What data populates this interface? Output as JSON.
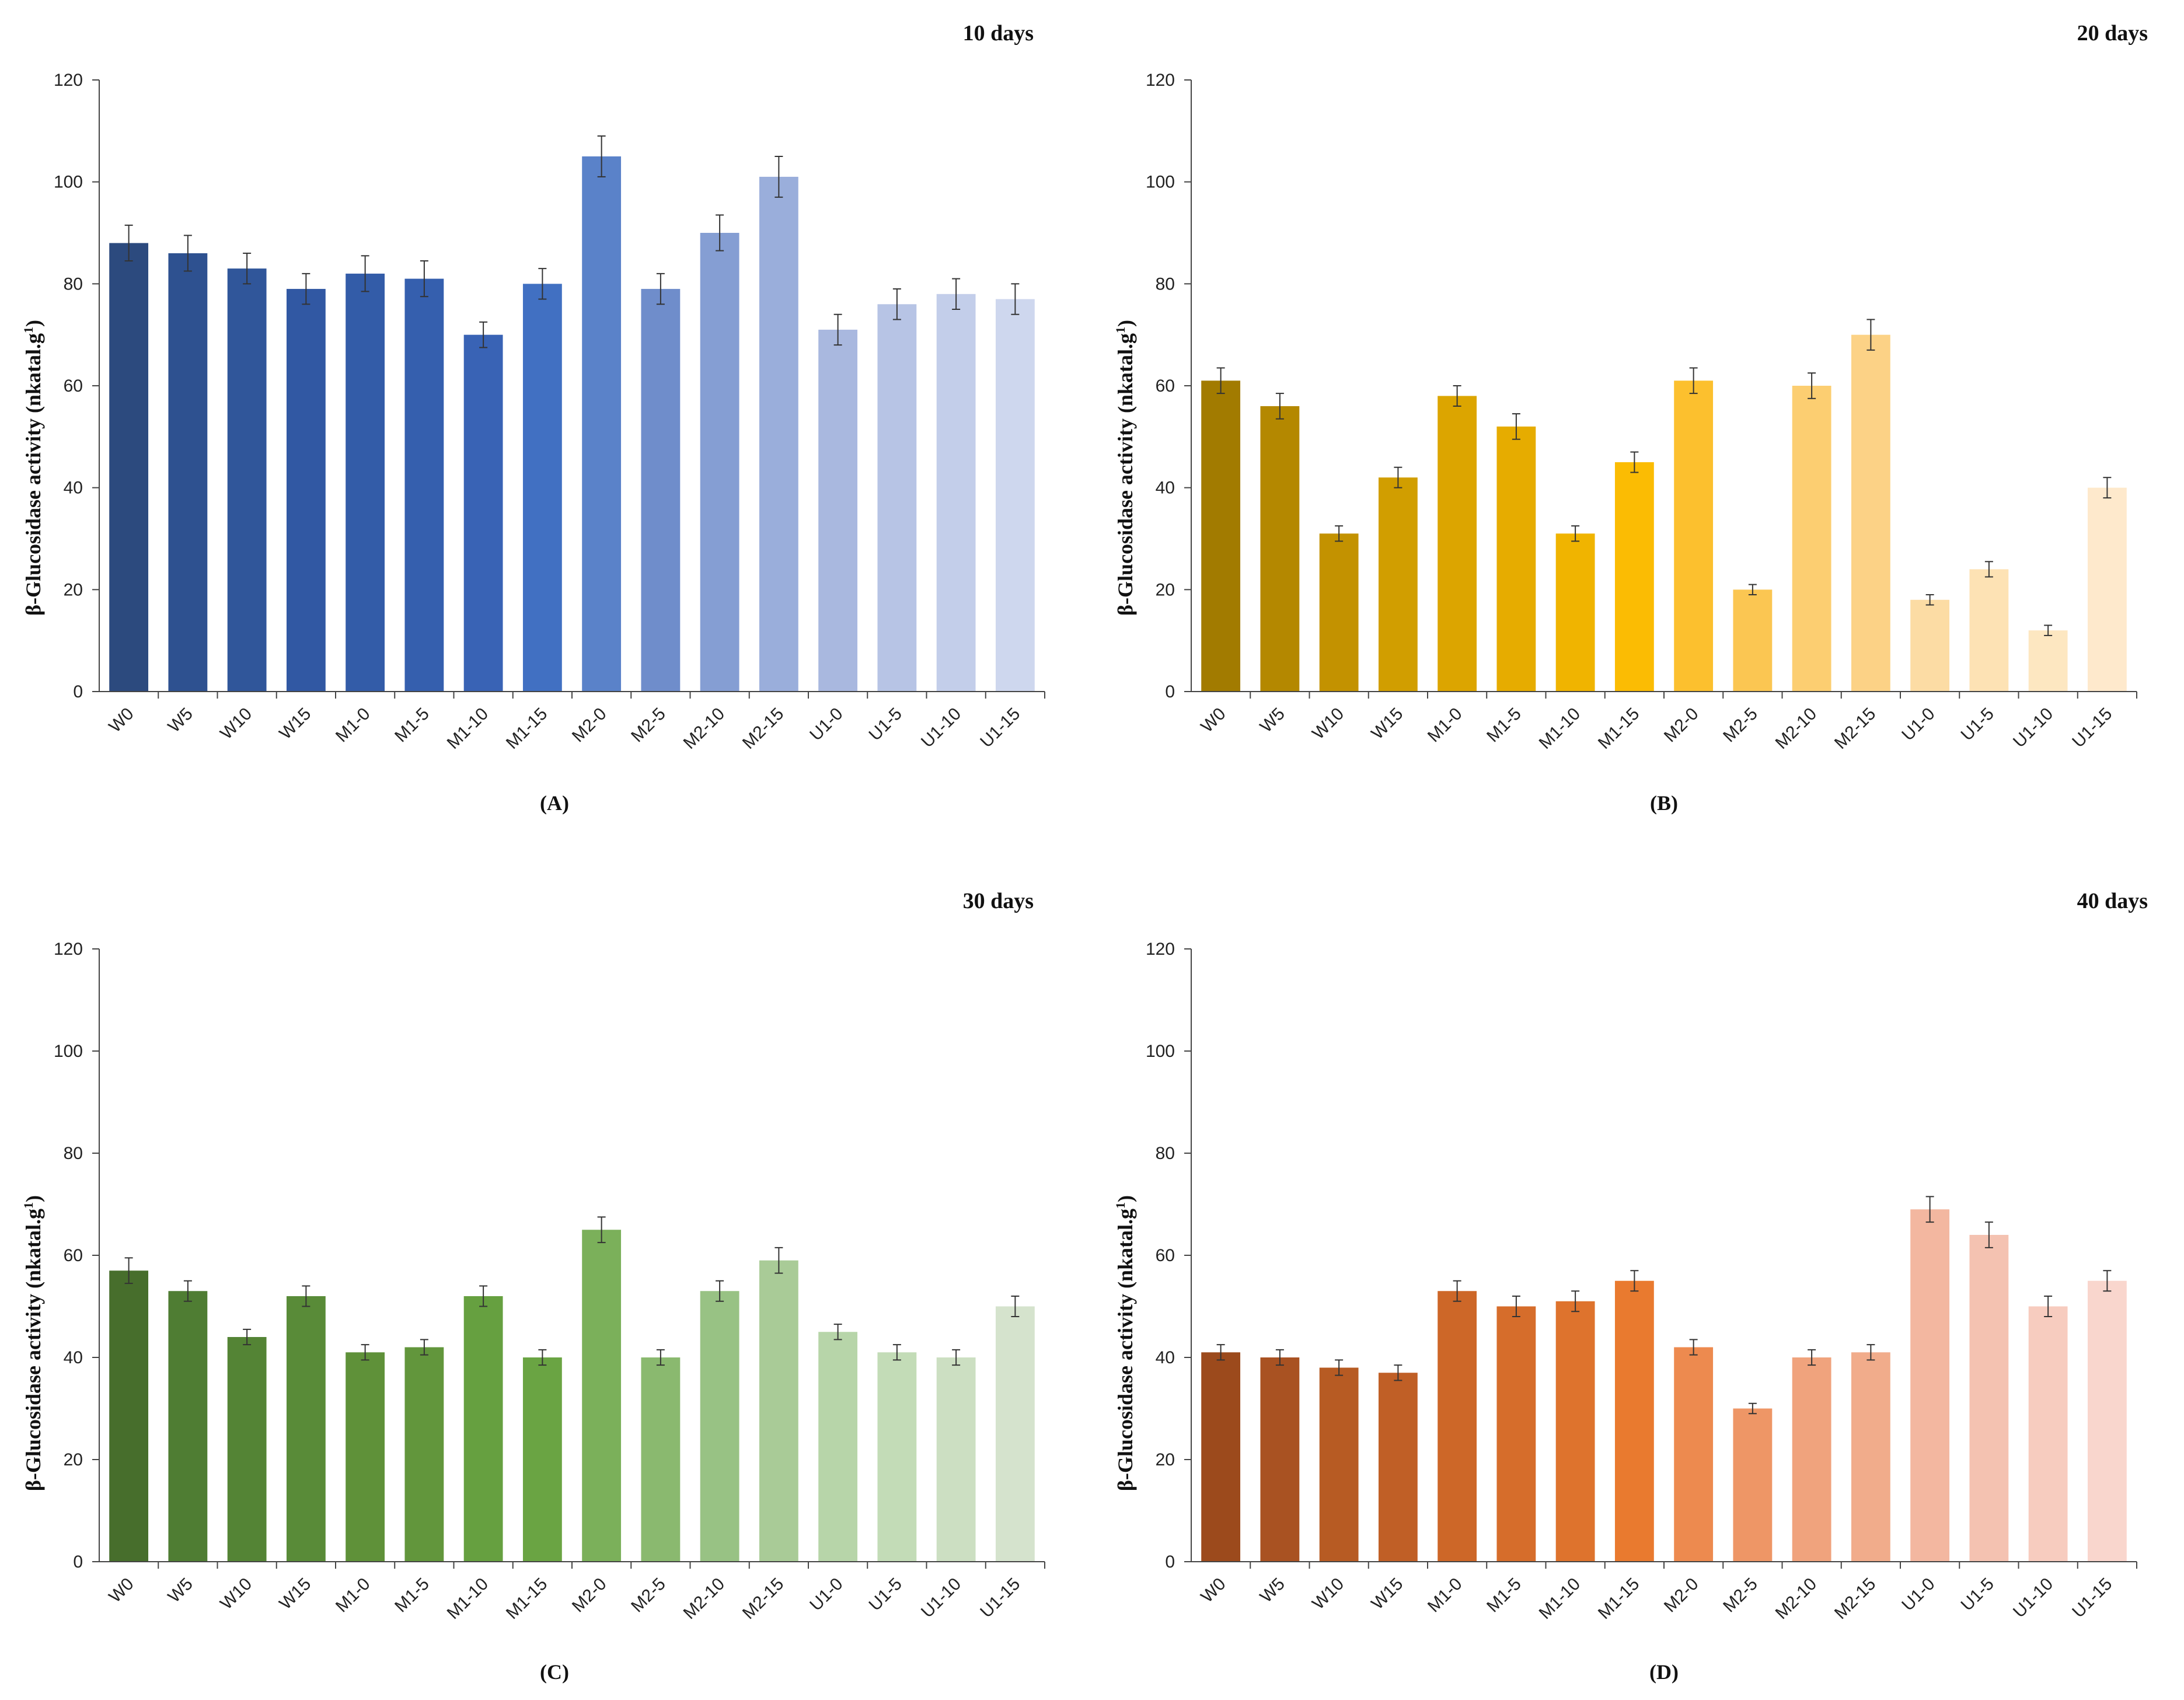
{
  "chart_data": [
    {
      "type": "bar",
      "title": "10 days",
      "caption": "(A)",
      "ylabel": "β-Glucosidase  activity  (nkatal.g",
      "ylabel_sup": "1",
      "ylabel_close": ")",
      "ylim": [
        0,
        120
      ],
      "yticks": [
        "0",
        "20",
        "40",
        "60",
        "80",
        "100",
        "120"
      ],
      "categories": [
        "W0",
        "W5",
        "W10",
        "W15",
        "M1-0",
        "M1-5",
        "M1-10",
        "M1-15",
        "M2-0",
        "M2-5",
        "M2-10",
        "M2-15",
        "U1-0",
        "U1-5",
        "U1-10",
        "U1-15"
      ],
      "values": [
        88,
        86,
        83,
        79,
        82,
        81,
        70,
        80,
        105,
        79,
        90,
        101,
        71,
        76,
        78,
        77
      ],
      "errors": [
        3.5,
        3.5,
        3,
        3,
        3.5,
        3.5,
        2.5,
        3,
        4,
        3,
        3.5,
        4,
        3,
        3,
        3,
        3
      ],
      "colors": [
        "#2c4a7e",
        "#2e5190",
        "#30569a",
        "#3158a3",
        "#335ca8",
        "#355fae",
        "#3963b5",
        "#4170c2",
        "#5a82c9",
        "#6f8dcb",
        "#859ed3",
        "#9aaedb",
        "#a9b8df",
        "#b7c4e5",
        "#c3ceea",
        "#ced7ee"
      ]
    },
    {
      "type": "bar",
      "title": "20 days",
      "caption": "(B)",
      "ylabel": "β-Glucosidase  activity  (nkatal.g",
      "ylabel_sup": "1",
      "ylabel_close": ")",
      "ylim": [
        0,
        120
      ],
      "yticks": [
        "0",
        "20",
        "40",
        "60",
        "80",
        "100",
        "120"
      ],
      "categories": [
        "W0",
        "W5",
        "W10",
        "W15",
        "M1-0",
        "M1-5",
        "M1-10",
        "M1-15",
        "M2-0",
        "M2-5",
        "M2-10",
        "M2-15",
        "U1-0",
        "U1-5",
        "U1-10",
        "U1-15"
      ],
      "values": [
        61,
        56,
        31,
        42,
        58,
        52,
        31,
        45,
        61,
        20,
        60,
        70,
        18,
        24,
        12,
        40
      ],
      "errors": [
        2.5,
        2.5,
        1.5,
        2,
        2,
        2.5,
        1.5,
        2,
        2.5,
        1,
        2.5,
        3,
        1,
        1.5,
        1,
        2
      ],
      "colors": [
        "#a27b00",
        "#b48800",
        "#c39200",
        "#d19e00",
        "#dca500",
        "#e6ac00",
        "#f0b400",
        "#fbbc03",
        "#fcc02e",
        "#fbc652",
        "#fcce71",
        "#fcd286",
        "#fcdca4",
        "#fde2b4",
        "#fde7c1",
        "#fee9cc"
      ]
    },
    {
      "type": "bar",
      "title": "30 days",
      "caption": "(C)",
      "ylabel": "β-Glucosidase  activity  (nkatal.g",
      "ylabel_sup": "1",
      "ylabel_close": ")",
      "ylim": [
        0,
        120
      ],
      "yticks": [
        "0",
        "20",
        "40",
        "60",
        "80",
        "100",
        "120"
      ],
      "categories": [
        "W0",
        "W5",
        "W10",
        "W15",
        "M1-0",
        "M1-5",
        "M1-10",
        "M1-15",
        "M2-0",
        "M2-5",
        "M2-10",
        "M2-15",
        "U1-0",
        "U1-5",
        "U1-10",
        "U1-15"
      ],
      "values": [
        57,
        53,
        44,
        52,
        41,
        42,
        52,
        40,
        65,
        40,
        53,
        59,
        45,
        41,
        40,
        50
      ],
      "errors": [
        2.5,
        2,
        1.5,
        2,
        1.5,
        1.5,
        2,
        1.5,
        2.5,
        1.5,
        2,
        2.5,
        1.5,
        1.5,
        1.5,
        2
      ],
      "colors": [
        "#476e2c",
        "#4f7d33",
        "#548435",
        "#598b38",
        "#5f9139",
        "#62963c",
        "#66a040",
        "#6aa443",
        "#7bb05a",
        "#8ab96f",
        "#98c284",
        "#a9cb97",
        "#b7d5a9",
        "#c3dcb7",
        "#ccdfc2",
        "#d5e3cd"
      ]
    },
    {
      "type": "bar",
      "title": "40 days",
      "caption": "(D)",
      "ylabel": "β-Glucosidase  activity  (nkatal.g",
      "ylabel_sup": "1",
      "ylabel_close": ")",
      "ylim": [
        0,
        120
      ],
      "yticks": [
        "0",
        "20",
        "40",
        "60",
        "80",
        "100",
        "120"
      ],
      "categories": [
        "W0",
        "W5",
        "W10",
        "W15",
        "M1-0",
        "M1-5",
        "M1-10",
        "M1-15",
        "M2-0",
        "M2-5",
        "M2-10",
        "M2-15",
        "U1-0",
        "U1-5",
        "U1-10",
        "U1-15"
      ],
      "values": [
        41,
        40,
        38,
        37,
        53,
        50,
        51,
        55,
        42,
        30,
        40,
        41,
        69,
        64,
        50,
        55
      ],
      "errors": [
        1.5,
        1.5,
        1.5,
        1.5,
        2,
        2,
        2,
        2,
        1.5,
        1,
        1.5,
        1.5,
        2.5,
        2.5,
        2,
        2
      ],
      "colors": [
        "#9c4a1c",
        "#a95222",
        "#b75b23",
        "#c05f26",
        "#cd6728",
        "#d66d2b",
        "#de732d",
        "#e97a2f",
        "#ed8a4f",
        "#ee9666",
        "#f0a37d",
        "#f1ac8b",
        "#f3b7a0",
        "#f4c2b1",
        "#f7ccbf",
        "#f9d6cd"
      ]
    }
  ]
}
